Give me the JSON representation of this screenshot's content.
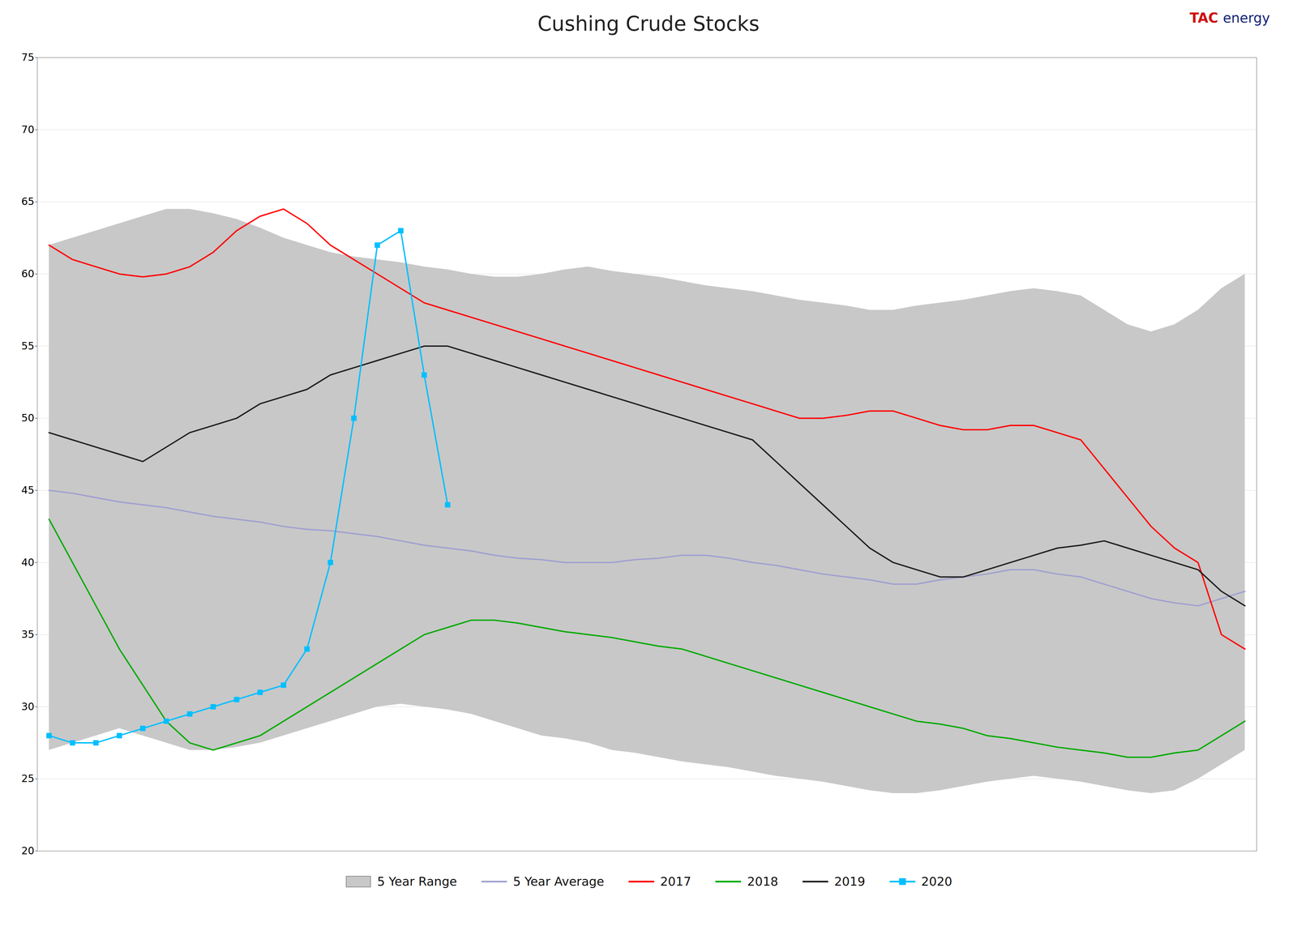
{
  "chart_data": {
    "type": "line",
    "title": "Cushing Crude Stocks",
    "annotations": [
      {
        "text": "TAC",
        "color": "#cc1111"
      },
      {
        "text": "energy",
        "color": "#112277"
      }
    ],
    "x": [
      0,
      1,
      2,
      3,
      4,
      5,
      6,
      7,
      8,
      9,
      10,
      11,
      12,
      13,
      14,
      15,
      16,
      17,
      18,
      19,
      20,
      21,
      22,
      23,
      24,
      25,
      26,
      27,
      28,
      29,
      30,
      31,
      32,
      33,
      34,
      35,
      36,
      37,
      38,
      39,
      40,
      41,
      42,
      43,
      44,
      45,
      46,
      47,
      48,
      49,
      50,
      51
    ],
    "series": [
      {
        "name": "5 Year Range",
        "type": "area",
        "color": "#c8c8c8",
        "lower": [
          27,
          27.5,
          28,
          28.5,
          28,
          27.5,
          27,
          27,
          27.2,
          27.5,
          28,
          28.5,
          29,
          29.5,
          30,
          30.2,
          30,
          29.8,
          29.5,
          29,
          28.5,
          28,
          27.8,
          27.5,
          27,
          26.8,
          26.5,
          26.2,
          26,
          25.8,
          25.5,
          25.2,
          25,
          24.8,
          24.5,
          24.2,
          24,
          24,
          24.2,
          24.5,
          24.8,
          25,
          25.2,
          25,
          24.8,
          24.5,
          24.2,
          24,
          24.2,
          25,
          26,
          27
        ],
        "upper": [
          62,
          62.5,
          63,
          63.5,
          64,
          64.5,
          64.5,
          64.2,
          63.8,
          63.2,
          62.5,
          62,
          61.5,
          61.2,
          61,
          60.8,
          60.5,
          60.3,
          60,
          59.8,
          59.8,
          60,
          60.3,
          60.5,
          60.2,
          60,
          59.8,
          59.5,
          59.2,
          59,
          58.8,
          58.5,
          58.2,
          58,
          57.8,
          57.5,
          57.5,
          57.8,
          58,
          58.2,
          58.5,
          58.8,
          59,
          58.8,
          58.5,
          57.5,
          56.5,
          56,
          56.5,
          57.5,
          59,
          60
        ]
      },
      {
        "name": "5 Year Average",
        "color": "#a0a0d0",
        "values": [
          45,
          44.8,
          44.5,
          44.2,
          44,
          43.8,
          43.5,
          43.2,
          43,
          42.8,
          42.5,
          42.3,
          42.2,
          42,
          41.8,
          41.5,
          41.2,
          41,
          40.8,
          40.5,
          40.3,
          40.2,
          40,
          40,
          40,
          40.2,
          40.3,
          40.5,
          40.5,
          40.3,
          40,
          39.8,
          39.5,
          39.2,
          39,
          38.8,
          38.5,
          38.5,
          38.8,
          39,
          39.2,
          39.5,
          39.5,
          39.2,
          39,
          38.5,
          38,
          37.5,
          37.2,
          37,
          37.5,
          38
        ]
      },
      {
        "name": "2017",
        "color": "#ff0000",
        "values": [
          62,
          61,
          60.5,
          60,
          59.8,
          60,
          60.5,
          61.5,
          63,
          64,
          64.5,
          63.5,
          62,
          61,
          60,
          59,
          58,
          57.5,
          57,
          56.5,
          56,
          55.5,
          55,
          54.5,
          54,
          53.5,
          53,
          52.5,
          52,
          51.5,
          51,
          50.5,
          50,
          50,
          50.2,
          50.5,
          50.5,
          50,
          49.5,
          49.2,
          49.2,
          49.5,
          49.5,
          49,
          48.5,
          46.5,
          44.5,
          42.5,
          41,
          40,
          35,
          34
        ]
      },
      {
        "name": "2018",
        "color": "#00aa00",
        "values": [
          43,
          40,
          37,
          34,
          31.5,
          29,
          27.5,
          27,
          27.5,
          28,
          29,
          30,
          31,
          32,
          33,
          34,
          35,
          35.5,
          36,
          36,
          35.8,
          35.5,
          35.2,
          35,
          34.8,
          34.5,
          34.2,
          34,
          33.5,
          33,
          32.5,
          32,
          31.5,
          31,
          30.5,
          30,
          29.5,
          29,
          28.8,
          28.5,
          28,
          27.8,
          27.5,
          27.2,
          27,
          26.8,
          26.5,
          26.5,
          26.8,
          27,
          28,
          29
        ]
      },
      {
        "name": "2019",
        "color": "#202020",
        "values": [
          49,
          48.5,
          48,
          47.5,
          47,
          48,
          49,
          49.5,
          50,
          51,
          51.5,
          52,
          53,
          53.5,
          54,
          54.5,
          55,
          55,
          54.5,
          54,
          53.5,
          53,
          52.5,
          52,
          51.5,
          51,
          50.5,
          50,
          49.5,
          49,
          48.5,
          47,
          45.5,
          44,
          42.5,
          41,
          40,
          39.5,
          39,
          39,
          39.5,
          40,
          40.5,
          41,
          41.2,
          41.5,
          41,
          40.5,
          40,
          39.5,
          38,
          37
        ]
      },
      {
        "name": "2020",
        "color": "#00bfff",
        "marker": "square",
        "x": [
          0,
          1,
          2,
          3,
          4,
          5,
          6,
          7,
          8,
          9,
          10,
          11,
          12,
          13,
          14,
          15,
          16,
          17
        ],
        "values": [
          28,
          27.5,
          27.5,
          28,
          28.5,
          29,
          29.5,
          30,
          30.5,
          31,
          31.5,
          34,
          40,
          50,
          62,
          63,
          53,
          44
        ]
      }
    ],
    "xlim": [
      -0.5,
      51.5
    ],
    "ylim": [
      20,
      75
    ],
    "yticks": [
      20,
      25,
      30,
      35,
      40,
      45,
      50,
      55,
      60,
      65,
      70,
      75
    ],
    "grid": true,
    "tick_labels": "y",
    "legend": "bottom"
  }
}
